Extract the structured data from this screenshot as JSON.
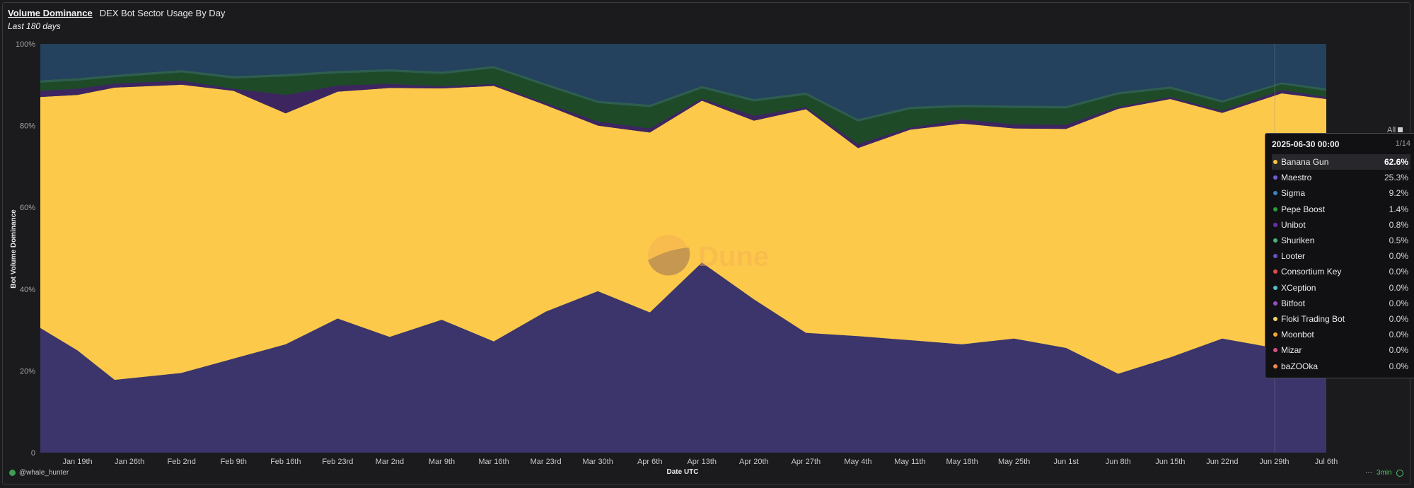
{
  "header": {
    "title": "Volume Dominance",
    "subtitle": "DEX Bot Sector Usage By Day",
    "period": "Last 180 days"
  },
  "chart_data": {
    "type": "area",
    "stacked": "percent",
    "xlabel": "Date UTC",
    "ylabel": "Bot Volume Dominance",
    "ylim": [
      0,
      100
    ],
    "yticks": [
      "0",
      "20%",
      "40%",
      "60%",
      "80%",
      "100%"
    ],
    "grid": false,
    "watermark": "Dune",
    "x_tick_labels": [
      "Jan 19th",
      "Jan 26th",
      "Feb 2nd",
      "Feb 9th",
      "Feb 16th",
      "Feb 23rd",
      "Mar 2nd",
      "Mar 9th",
      "Mar 16th",
      "Mar 23rd",
      "Mar 30th",
      "Apr 6th",
      "Apr 13th",
      "Apr 20th",
      "Apr 27th",
      "May 4th",
      "May 11th",
      "May 18th",
      "May 25th",
      "Jun 1st",
      "Jun 8th",
      "Jun 15th",
      "Jun 22nd",
      "Jun 29th",
      "Jul 6th"
    ],
    "x": [
      "2025-01-14",
      "2025-01-19",
      "2025-01-24",
      "2025-02-02",
      "2025-02-09",
      "2025-02-16",
      "2025-02-23",
      "2025-03-02",
      "2025-03-09",
      "2025-03-16",
      "2025-03-23",
      "2025-03-30",
      "2025-04-06",
      "2025-04-13",
      "2025-04-20",
      "2025-04-27",
      "2025-05-04",
      "2025-05-11",
      "2025-05-18",
      "2025-05-25",
      "2025-06-01",
      "2025-06-08",
      "2025-06-15",
      "2025-06-22",
      "2025-06-30",
      "2025-07-06"
    ],
    "series": [
      {
        "name": "Maestro",
        "color": "#3b356b",
        "values": [
          30.5,
          25,
          17.8,
          19.5,
          23,
          26.5,
          32.8,
          28.3,
          32.5,
          27.2,
          34.5,
          39.5,
          34.3,
          46.5,
          37.5,
          29.3,
          28.5,
          27.5,
          26.5,
          27.9,
          25.6,
          19.3,
          23.3,
          27.9,
          25.3,
          18.5
        ]
      },
      {
        "name": "Banana Gun",
        "color": "#fdc94b",
        "values": [
          56.5,
          62.5,
          71.5,
          70.5,
          65.5,
          56.5,
          55.5,
          60.9,
          56.6,
          62.5,
          50.5,
          40.5,
          44,
          39.6,
          43.7,
          54.7,
          46,
          51.5,
          54,
          51.4,
          53.6,
          64.8,
          63.2,
          55.2,
          62.6,
          68
        ]
      },
      {
        "name": "Unibot",
        "color": "#3d2660",
        "values": [
          1.5,
          1.5,
          1,
          1,
          0.5,
          4.5,
          1.5,
          1,
          0.5,
          0.5,
          0.5,
          1,
          1,
          0.5,
          1.2,
          0.5,
          1,
          0.5,
          1,
          1,
          1,
          0.5,
          0.5,
          0.5,
          0.8,
          0.5
        ]
      },
      {
        "name": "Pepe Boost",
        "color": "#1e4a27",
        "values": [
          2,
          2,
          1.5,
          2,
          2.5,
          4.5,
          3,
          3,
          3,
          3.8,
          4.2,
          4.5,
          5.2,
          2.5,
          3.5,
          3,
          5.5,
          4.5,
          3,
          4,
          4,
          3,
          2,
          2,
          1.4,
          1.5
        ]
      },
      {
        "name": "Shuriken",
        "color": "#2e5e4e",
        "values": [
          0.6,
          0.6,
          0.6,
          0.6,
          0.6,
          0.6,
          0.6,
          0.6,
          0.6,
          0.6,
          0.6,
          0.6,
          0.6,
          0.6,
          0.6,
          0.6,
          0.6,
          0.6,
          0.6,
          0.6,
          0.6,
          0.6,
          0.6,
          0.6,
          0.5,
          0.6
        ]
      },
      {
        "name": "Sigma",
        "color": "#24415e",
        "values": [
          8.9,
          8.4,
          7.6,
          6.4,
          7.9,
          7.4,
          6.6,
          6.2,
          6.8,
          5.4,
          9.7,
          13.9,
          14.9,
          10.3,
          13.5,
          11.9,
          18.4,
          15.4,
          14.9,
          15.1,
          15.2,
          11.8,
          10.4,
          13.8,
          9.2,
          10.9
        ]
      }
    ],
    "tooltip": {
      "date": "2025-06-30 00:00",
      "page": "1/14",
      "items": [
        {
          "name": "Banana Gun",
          "value": "62.6%",
          "color": "#f6c33f"
        },
        {
          "name": "Maestro",
          "value": "25.3%",
          "color": "#6c5fd6"
        },
        {
          "name": "Sigma",
          "value": "9.2%",
          "color": "#3a84c2"
        },
        {
          "name": "Pepe Boost",
          "value": "1.4%",
          "color": "#2e9b3c"
        },
        {
          "name": "Unibot",
          "value": "0.8%",
          "color": "#6a2fb0"
        },
        {
          "name": "Shuriken",
          "value": "0.5%",
          "color": "#4fae7f"
        },
        {
          "name": "Looter",
          "value": "0.0%",
          "color": "#6f4fc4"
        },
        {
          "name": "Consortium Key",
          "value": "0.0%",
          "color": "#e04b4b"
        },
        {
          "name": "XCeption",
          "value": "0.0%",
          "color": "#4fc0c8"
        },
        {
          "name": "Bitfoot",
          "value": "0.0%",
          "color": "#9a4fc4"
        },
        {
          "name": "Floki Trading Bot",
          "value": "0.0%",
          "color": "#f2d46a"
        },
        {
          "name": "Moonbot",
          "value": "0.0%",
          "color": "#f0a935"
        },
        {
          "name": "Mizar",
          "value": "0.0%",
          "color": "#d64f8a"
        },
        {
          "name": "baZOOka",
          "value": "0.0%",
          "color": "#f08a4a"
        }
      ]
    }
  },
  "legend_toggle": "All",
  "footer": {
    "user": "@whale_hunter",
    "dots": "···",
    "refresh": "3min"
  }
}
